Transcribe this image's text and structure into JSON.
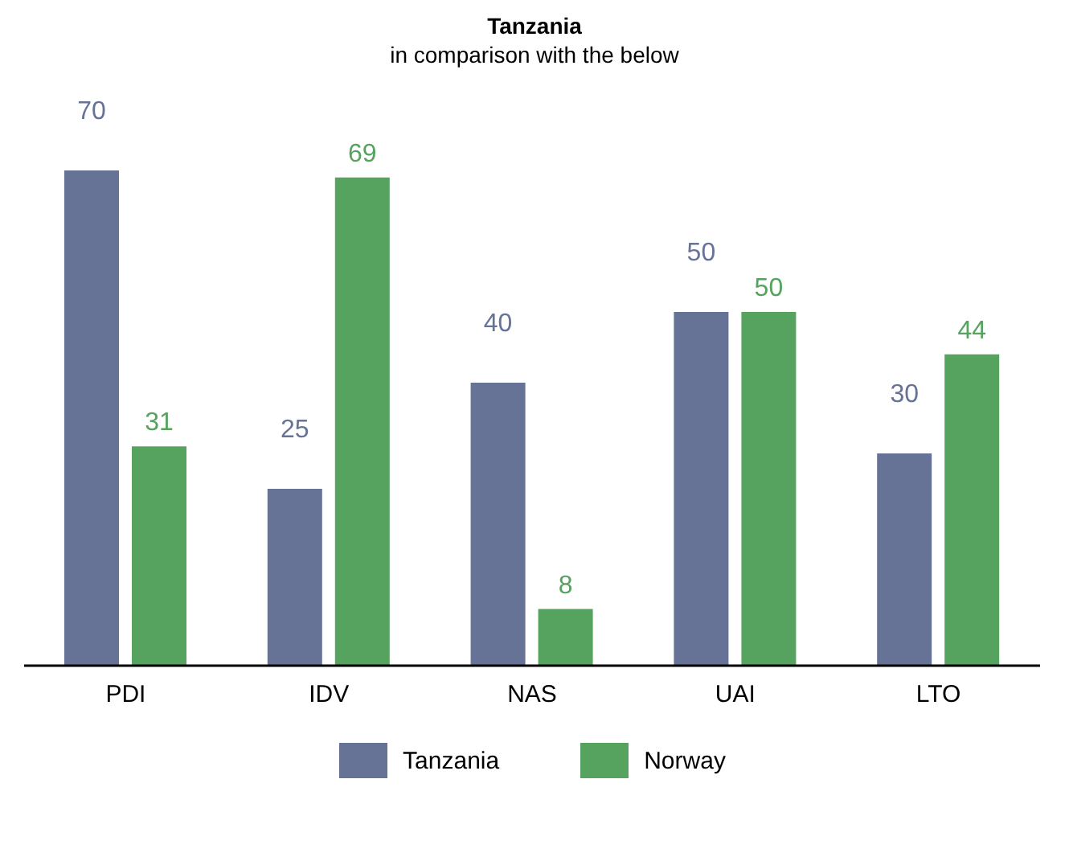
{
  "chart_data": {
    "type": "bar",
    "title": "Tanzania",
    "subtitle": "in comparison with the below",
    "categories": [
      "PDI",
      "IDV",
      "NAS",
      "UAI",
      "LTO"
    ],
    "series": [
      {
        "name": "Tanzania",
        "color": "#677396",
        "values": [
          70,
          25,
          40,
          50,
          30
        ]
      },
      {
        "name": "Norway",
        "color": "#55a35e",
        "values": [
          31,
          69,
          8,
          50,
          44
        ]
      }
    ],
    "data_labels": true,
    "legend": "bottom",
    "grid": false
  }
}
